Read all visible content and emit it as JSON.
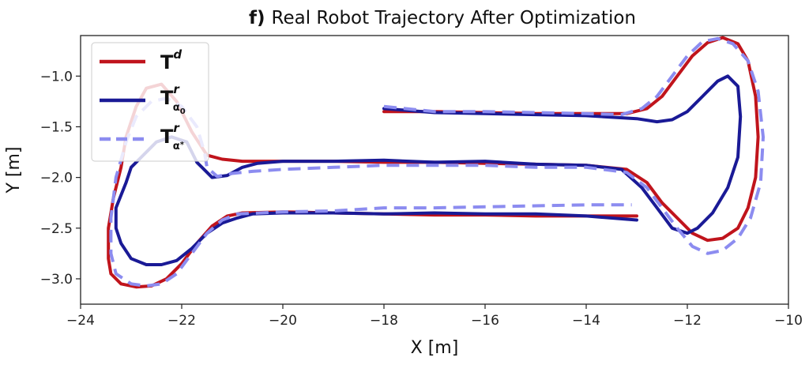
{
  "chart_data": {
    "type": "line",
    "title_prefix": "f)",
    "title": "Real Robot Trajectory After Optimization",
    "xlabel": "X [m]",
    "ylabel": "Y [m]",
    "xlim": [
      -24,
      -10
    ],
    "ylim": [
      -3.25,
      -0.6
    ],
    "xticks": [
      -24,
      -22,
      -20,
      -18,
      -16,
      -14,
      -12,
      -10
    ],
    "yticks": [
      -3.0,
      -2.5,
      -2.0,
      -1.5,
      -1.0
    ],
    "xtick_labels": [
      "−24",
      "−22",
      "−20",
      "−18",
      "−16",
      "−14",
      "−12",
      "−10"
    ],
    "ytick_labels": [
      "−3.0",
      "−2.5",
      "−2.0",
      "−1.5",
      "−1.0"
    ],
    "grid": false,
    "legend_position": "upper-left",
    "legend": [
      {
        "symbol": "T",
        "sup": "d",
        "sub": "",
        "subsub": ""
      },
      {
        "symbol": "T",
        "sup": "r",
        "sub": "α",
        "subsub": "0"
      },
      {
        "symbol": "T",
        "sup": "r",
        "sub": "α",
        "subsub": "*"
      }
    ],
    "series": [
      {
        "color": "#c0141c",
        "style": "solid",
        "x": [
          -18.0,
          -17.0,
          -16.0,
          -15.0,
          -14.0,
          -13.2,
          -12.8,
          -12.5,
          -12.2,
          -11.9,
          -11.6,
          -11.3,
          -11.0,
          -10.8,
          -10.65,
          -10.6,
          -10.65,
          -10.8,
          -11.0,
          -11.3,
          -11.6,
          -11.9,
          -12.2,
          -12.5,
          -12.8,
          -13.2,
          -14.0,
          -15.0,
          -16.0,
          -17.0,
          -18.0,
          -19.0,
          -20.0,
          -20.8,
          -21.2,
          -21.5,
          -21.8,
          -22.1,
          -22.4,
          -22.7,
          -22.9,
          -23.1,
          -23.2,
          -23.35,
          -23.45,
          -23.45,
          -23.4,
          -23.2,
          -22.9,
          -22.6,
          -22.3,
          -22.0,
          -21.7,
          -21.4,
          -21.1,
          -20.8,
          -20.0,
          -19.0,
          -18.0,
          -17.0,
          -16.0,
          -15.0,
          -14.0,
          -13.0
        ],
        "y": [
          -1.35,
          -1.35,
          -1.36,
          -1.37,
          -1.37,
          -1.37,
          -1.32,
          -1.2,
          -1.0,
          -0.8,
          -0.67,
          -0.62,
          -0.68,
          -0.85,
          -1.2,
          -1.6,
          -2.0,
          -2.3,
          -2.5,
          -2.6,
          -2.62,
          -2.55,
          -2.4,
          -2.25,
          -2.05,
          -1.92,
          -1.88,
          -1.87,
          -1.86,
          -1.85,
          -1.85,
          -1.84,
          -1.84,
          -1.84,
          -1.82,
          -1.78,
          -1.55,
          -1.25,
          -1.08,
          -1.12,
          -1.3,
          -1.6,
          -1.9,
          -2.2,
          -2.5,
          -2.8,
          -2.95,
          -3.05,
          -3.08,
          -3.07,
          -3.0,
          -2.85,
          -2.65,
          -2.48,
          -2.38,
          -2.35,
          -2.34,
          -2.35,
          -2.36,
          -2.37,
          -2.37,
          -2.38,
          -2.38,
          -2.38
        ]
      },
      {
        "color": "#1a1a96",
        "style": "solid",
        "x": [
          -18.0,
          -17.0,
          -16.0,
          -15.0,
          -14.0,
          -13.0,
          -12.6,
          -12.3,
          -12.0,
          -11.7,
          -11.4,
          -11.2,
          -11.0,
          -10.95,
          -11.0,
          -11.2,
          -11.5,
          -11.8,
          -12.0,
          -12.3,
          -12.6,
          -12.9,
          -13.3,
          -14.0,
          -15.0,
          -16.0,
          -17.0,
          -18.0,
          -19.0,
          -20.0,
          -20.5,
          -20.8,
          -21.1,
          -21.4,
          -21.7,
          -21.9,
          -22.2,
          -22.5,
          -22.8,
          -23.0,
          -23.1,
          -23.3,
          -23.3,
          -23.2,
          -23.0,
          -22.7,
          -22.4,
          -22.1,
          -21.8,
          -21.5,
          -21.2,
          -20.9,
          -20.6,
          -20.0,
          -19.0,
          -18.0,
          -17.0,
          -16.0,
          -15.0,
          -14.0,
          -13.0
        ],
        "y": [
          -1.32,
          -1.36,
          -1.37,
          -1.38,
          -1.39,
          -1.42,
          -1.45,
          -1.43,
          -1.35,
          -1.2,
          -1.05,
          -1.0,
          -1.1,
          -1.4,
          -1.8,
          -2.1,
          -2.35,
          -2.5,
          -2.55,
          -2.5,
          -2.3,
          -2.1,
          -1.92,
          -1.88,
          -1.87,
          -1.84,
          -1.85,
          -1.83,
          -1.84,
          -1.84,
          -1.86,
          -1.9,
          -1.98,
          -2.0,
          -1.85,
          -1.65,
          -1.6,
          -1.65,
          -1.8,
          -1.9,
          -2.05,
          -2.3,
          -2.5,
          -2.65,
          -2.8,
          -2.86,
          -2.86,
          -2.82,
          -2.7,
          -2.55,
          -2.45,
          -2.4,
          -2.36,
          -2.35,
          -2.35,
          -2.36,
          -2.35,
          -2.36,
          -2.36,
          -2.38,
          -2.42
        ]
      },
      {
        "color": "#8c8cf0",
        "style": "dashed",
        "x": [
          -18.0,
          -17.0,
          -16.0,
          -15.0,
          -14.0,
          -13.3,
          -12.9,
          -12.6,
          -12.3,
          -12.0,
          -11.7,
          -11.4,
          -11.1,
          -10.8,
          -10.6,
          -10.5,
          -10.55,
          -10.75,
          -11.0,
          -11.3,
          -11.6,
          -11.9,
          -12.2,
          -12.5,
          -12.8,
          -13.2,
          -14.0,
          -15.0,
          -16.0,
          -17.0,
          -18.0,
          -19.0,
          -20.0,
          -20.6,
          -21.0,
          -21.3,
          -21.5,
          -21.55,
          -21.7,
          -22.0,
          -22.3,
          -22.6,
          -22.9,
          -23.1,
          -23.3,
          -23.4,
          -23.4,
          -23.3,
          -23.0,
          -22.7,
          -22.4,
          -22.1,
          -21.8,
          -21.5,
          -21.2,
          -20.9,
          -20.0,
          -19.0,
          -18.0,
          -17.0,
          -16.0,
          -15.0,
          -14.0,
          -13.1
        ],
        "y": [
          -1.3,
          -1.35,
          -1.35,
          -1.36,
          -1.37,
          -1.38,
          -1.32,
          -1.2,
          -1.0,
          -0.8,
          -0.66,
          -0.63,
          -0.68,
          -0.85,
          -1.15,
          -1.6,
          -2.05,
          -2.4,
          -2.6,
          -2.72,
          -2.75,
          -2.68,
          -2.5,
          -2.3,
          -2.1,
          -1.95,
          -1.9,
          -1.9,
          -1.88,
          -1.88,
          -1.88,
          -1.9,
          -1.92,
          -1.94,
          -1.96,
          -1.99,
          -1.9,
          -1.75,
          -1.5,
          -1.3,
          -1.22,
          -1.25,
          -1.4,
          -1.65,
          -2.0,
          -2.4,
          -2.75,
          -2.95,
          -3.05,
          -3.07,
          -3.05,
          -2.95,
          -2.75,
          -2.55,
          -2.42,
          -2.36,
          -2.34,
          -2.33,
          -2.3,
          -2.3,
          -2.29,
          -2.28,
          -2.27,
          -2.27
        ]
      }
    ]
  }
}
